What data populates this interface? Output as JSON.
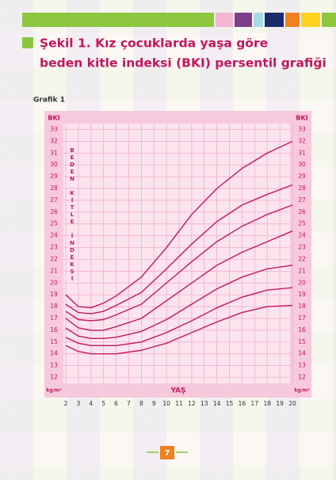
{
  "page_title": [
    "Şekil 1. Kız çocuklarda yaşa göre",
    "beden kitle indeksi (BKI) persentil grafiği"
  ],
  "figure_label": "Grafik 1",
  "page_number": "7",
  "chart_data": {
    "type": "line",
    "y_label": "BKI",
    "y_label_vertical": "BEDEN KİTLE İNDEKSİ",
    "y_unit": "kg/m²",
    "x_label": "YAŞ",
    "color": "#c2185b",
    "grid": true,
    "xlim": [
      2,
      20
    ],
    "xticks": [
      2,
      3,
      4,
      5,
      6,
      7,
      8,
      9,
      10,
      11,
      12,
      13,
      14,
      15,
      16,
      17,
      18,
      19,
      20
    ],
    "ylim": [
      11.5,
      33.5
    ],
    "yticks": [
      12,
      13,
      14,
      15,
      16,
      17,
      18,
      19,
      20,
      21,
      22,
      23,
      24,
      25,
      26,
      27,
      28,
      29,
      30,
      31,
      32,
      33
    ],
    "x": [
      2,
      3,
      4,
      5,
      6,
      8,
      10,
      12,
      14,
      16,
      18,
      20
    ],
    "series": [
      {
        "values": [
          19.0,
          18.0,
          17.9,
          18.3,
          18.9,
          20.5,
          23.0,
          25.8,
          28.0,
          29.7,
          31.0,
          32.0
        ]
      },
      {
        "values": [
          18.2,
          17.5,
          17.4,
          17.6,
          18.1,
          19.2,
          21.2,
          23.3,
          25.2,
          26.6,
          27.5,
          28.3
        ]
      },
      {
        "values": [
          17.6,
          16.9,
          16.8,
          16.9,
          17.3,
          18.2,
          20.0,
          21.8,
          23.5,
          24.8,
          25.8,
          26.6
        ]
      },
      {
        "values": [
          17.0,
          16.2,
          16.0,
          16.0,
          16.3,
          17.0,
          18.5,
          20.0,
          21.5,
          22.6,
          23.5,
          24.4
        ]
      },
      {
        "values": [
          16.2,
          15.5,
          15.3,
          15.3,
          15.4,
          15.9,
          16.9,
          18.2,
          19.5,
          20.5,
          21.2,
          21.5
        ]
      },
      {
        "values": [
          15.4,
          14.9,
          14.7,
          14.7,
          14.7,
          15.0,
          15.8,
          16.8,
          17.9,
          18.8,
          19.4,
          19.6
        ]
      },
      {
        "values": [
          14.7,
          14.2,
          14.0,
          14.0,
          14.0,
          14.3,
          14.9,
          15.8,
          16.7,
          17.5,
          18.0,
          18.1
        ]
      }
    ]
  }
}
